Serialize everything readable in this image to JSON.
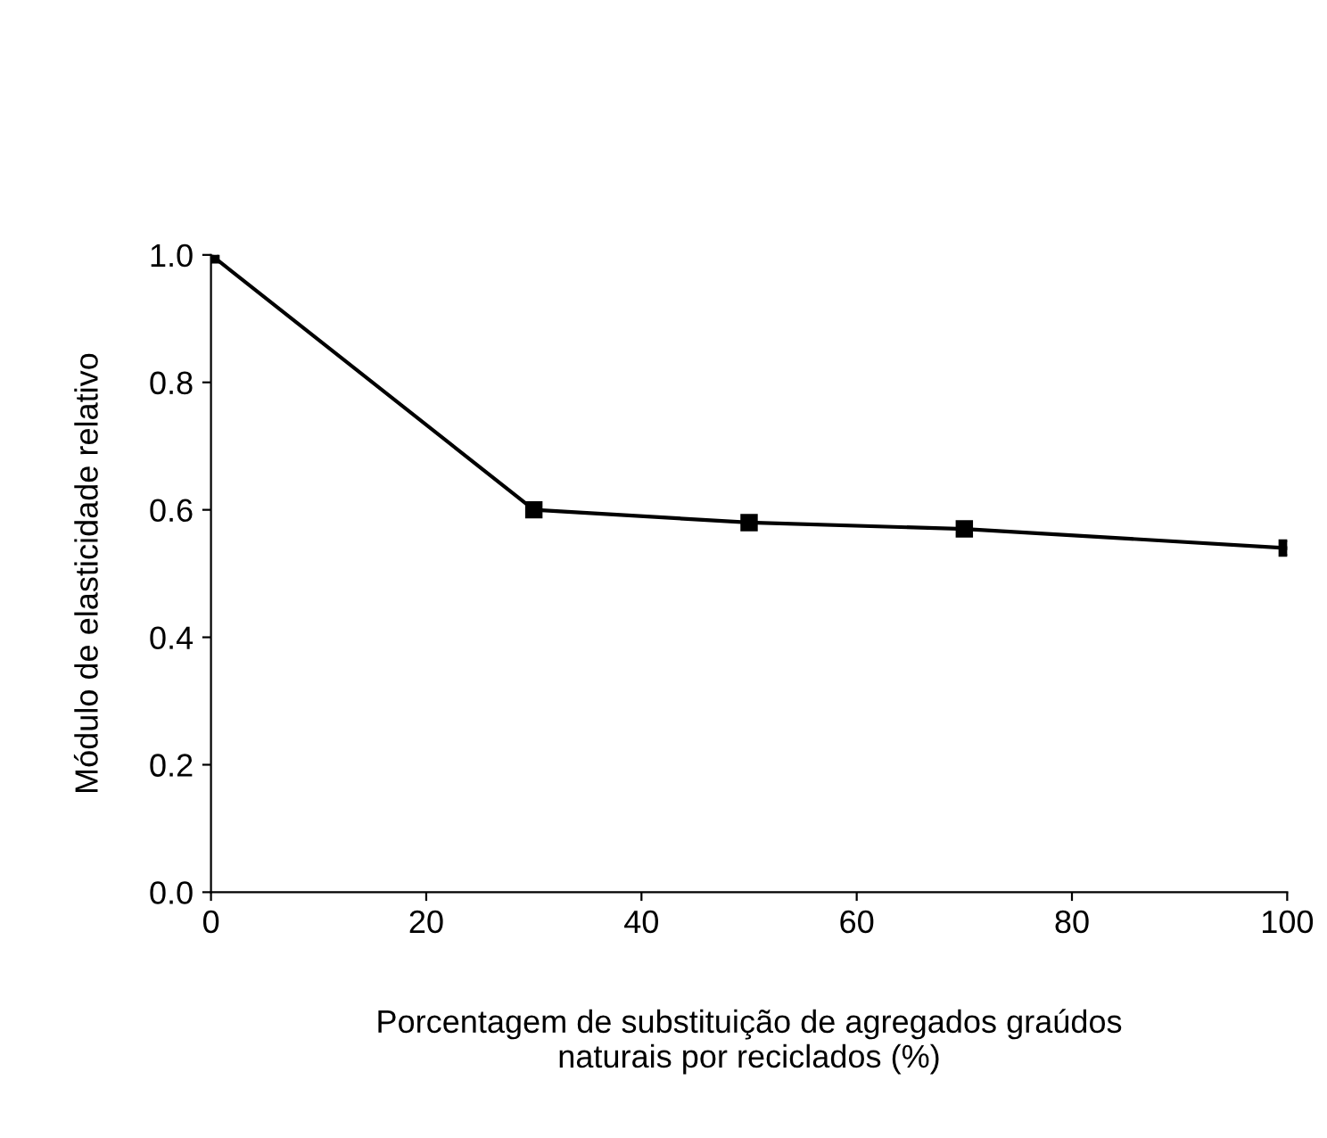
{
  "chart_data": {
    "type": "line",
    "xlabel": "Porcentagem de substituição de agregados graúdos\nnaturais por reciclados (%)",
    "ylabel": "Módulo de elasticidade relativo",
    "x": [
      0,
      30,
      50,
      70,
      100
    ],
    "series": [
      {
        "color": "#000000",
        "values": [
          1.0,
          0.6,
          0.58,
          0.57,
          0.54
        ]
      }
    ],
    "marker": "square",
    "line_style": "solid",
    "xlim": [
      0,
      100
    ],
    "xticks": [
      0,
      20,
      40,
      60,
      80,
      100
    ],
    "ylim": [
      0,
      1.0
    ],
    "yticks": [
      {
        "value": 0,
        "label": "0.0"
      },
      0.2,
      0.4,
      0.6,
      0.8,
      {
        "value": 1.0,
        "label": "1.0"
      }
    ],
    "grid": false,
    "legend": false
  }
}
